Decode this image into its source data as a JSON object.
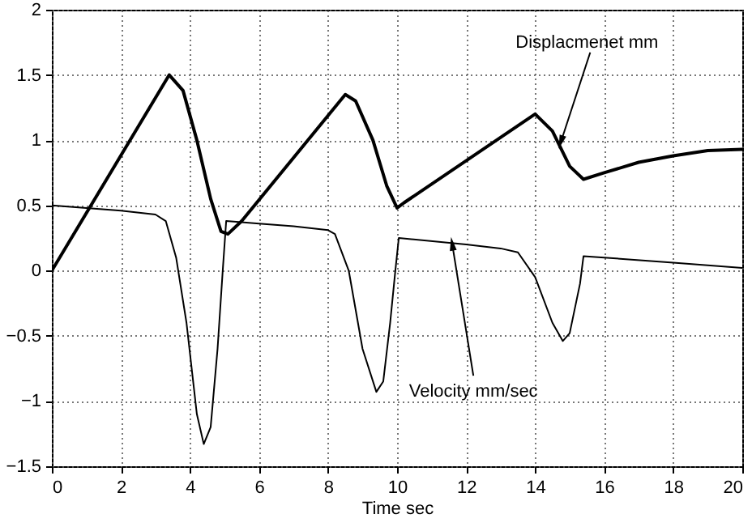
{
  "chart_data": {
    "type": "line",
    "xlabel": "Time sec",
    "xlim": [
      0,
      20
    ],
    "xticks": [
      0,
      2,
      4,
      6,
      8,
      10,
      12,
      14,
      16,
      18,
      20
    ],
    "ylim": [
      -1.5,
      2
    ],
    "yticks": [
      -1.5,
      -1,
      -0.5,
      0,
      0.5,
      1,
      1.5,
      2
    ],
    "grid": true,
    "line_style": "solid",
    "marker": "none",
    "series": [
      {
        "color": "#000000",
        "x": [
          0,
          3.4,
          3.8,
          4.2,
          4.6,
          4.9,
          5.1,
          5.5,
          8.5,
          8.8,
          9.3,
          9.7,
          10.0,
          10.2,
          14,
          14.5,
          15.0,
          15.4,
          16,
          17,
          18,
          19,
          20
        ],
        "values": [
          0,
          1.5,
          1.38,
          1.0,
          0.55,
          0.3,
          0.28,
          0.38,
          1.35,
          1.3,
          1.0,
          0.65,
          0.48,
          0.52,
          1.2,
          1.07,
          0.8,
          0.7,
          0.75,
          0.83,
          0.88,
          0.92,
          0.93
        ]
      },
      {
        "color": "#000000",
        "x": [
          0,
          2,
          3,
          3.3,
          3.6,
          3.9,
          4.2,
          4.4,
          4.6,
          4.8,
          4.95,
          5.05,
          6,
          7,
          8,
          8.2,
          8.6,
          9.0,
          9.4,
          9.6,
          9.8,
          9.95,
          10.05,
          12,
          13,
          13.5,
          14,
          14.5,
          14.8,
          15.0,
          15.3,
          15.4,
          16,
          18,
          20
        ],
        "values": [
          0.5,
          0.46,
          0.43,
          0.38,
          0.1,
          -0.4,
          -1.1,
          -1.33,
          -1.2,
          -0.6,
          0,
          0.38,
          0.36,
          0.34,
          0.31,
          0.28,
          0,
          -0.6,
          -0.93,
          -0.85,
          -0.4,
          0,
          0.25,
          0.2,
          0.17,
          0.14,
          -0.05,
          -0.4,
          -0.54,
          -0.48,
          -0.1,
          0.11,
          0.1,
          0.06,
          0.02
        ]
      }
    ],
    "annotations": [
      {
        "text": "Displacmenet mm",
        "x": 14.75,
        "y": 0.99
      },
      {
        "text": "Velocity mm/sec",
        "x": 11.6,
        "y": 0.2
      }
    ]
  }
}
